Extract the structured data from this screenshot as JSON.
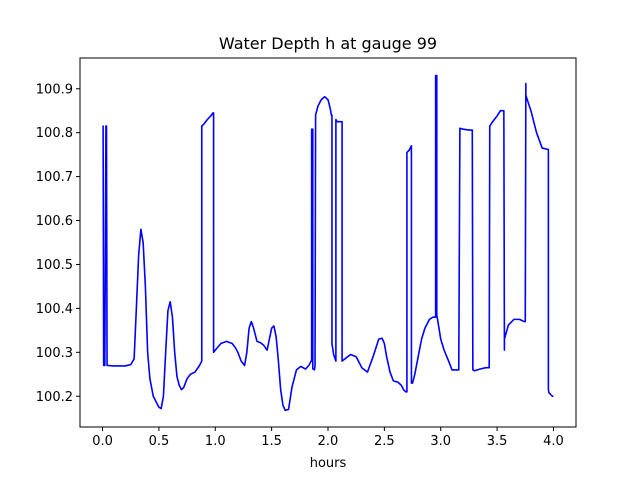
{
  "chart_data": {
    "type": "line",
    "title": "Water Depth h at gauge 99",
    "xlabel": "hours",
    "ylabel": "",
    "xlim": [
      -0.2,
      4.2
    ],
    "ylim": [
      100.13,
      100.97
    ],
    "x_ticks": [
      "0.0",
      "0.5",
      "1.0",
      "1.5",
      "2.0",
      "2.5",
      "3.0",
      "3.5",
      "4.0"
    ],
    "y_ticks": [
      "100.2",
      "100.3",
      "100.4",
      "100.5",
      "100.6",
      "100.7",
      "100.8",
      "100.9"
    ],
    "grid": false,
    "series": [
      {
        "color": "#0000ff",
        "x": [
          0.0,
          0.005,
          0.01,
          0.02,
          0.03,
          0.035,
          0.04,
          0.05,
          0.1,
          0.15,
          0.2,
          0.25,
          0.28,
          0.3,
          0.32,
          0.34,
          0.36,
          0.38,
          0.4,
          0.42,
          0.45,
          0.48,
          0.5,
          0.52,
          0.54,
          0.56,
          0.58,
          0.6,
          0.62,
          0.64,
          0.66,
          0.68,
          0.7,
          0.72,
          0.75,
          0.78,
          0.82,
          0.86,
          0.88,
          0.88,
          0.9,
          0.93,
          0.96,
          0.98,
          0.985,
          0.985,
          1.0,
          1.05,
          1.1,
          1.15,
          1.18,
          1.2,
          1.23,
          1.26,
          1.28,
          1.3,
          1.32,
          1.34,
          1.37,
          1.4,
          1.43,
          1.46,
          1.48,
          1.5,
          1.52,
          1.54,
          1.56,
          1.58,
          1.6,
          1.62,
          1.65,
          1.68,
          1.72,
          1.76,
          1.8,
          1.83,
          1.85,
          1.855,
          1.855,
          1.86,
          1.865,
          1.865,
          1.87,
          1.875,
          1.88,
          1.885,
          1.885,
          1.89,
          1.91,
          1.94,
          1.97,
          2.0,
          2.02,
          2.03,
          2.035,
          2.035,
          2.05,
          2.07,
          2.07,
          2.08,
          2.1,
          2.12,
          2.125,
          2.125,
          2.15,
          2.2,
          2.25,
          2.3,
          2.35,
          2.4,
          2.45,
          2.48,
          2.5,
          2.52,
          2.55,
          2.58,
          2.62,
          2.65,
          2.67,
          2.69,
          2.7,
          2.7,
          2.72,
          2.73,
          2.74,
          2.74,
          2.75,
          2.77,
          2.8,
          2.83,
          2.86,
          2.9,
          2.93,
          2.95,
          2.955,
          2.955,
          2.965,
          2.965,
          2.975,
          3.0,
          3.03,
          3.07,
          3.1,
          3.12,
          3.14,
          3.16,
          3.17,
          3.17,
          3.2,
          3.25,
          3.28,
          3.285,
          3.285,
          3.3,
          3.35,
          3.4,
          3.43,
          3.435,
          3.435,
          3.46,
          3.5,
          3.53,
          3.56,
          3.565,
          3.565,
          3.6,
          3.65,
          3.7,
          3.74,
          3.75,
          3.755,
          3.755,
          3.8,
          3.85,
          3.9,
          3.95,
          3.955,
          3.955,
          3.96,
          3.99,
          4.0
        ],
        "y": [
          100.815,
          100.815,
          100.27,
          100.27,
          100.815,
          100.815,
          100.27,
          100.27,
          100.269,
          100.269,
          100.269,
          100.272,
          100.285,
          100.4,
          100.52,
          100.58,
          100.55,
          100.45,
          100.3,
          100.24,
          100.2,
          100.185,
          100.175,
          100.172,
          100.2,
          100.3,
          100.395,
          100.415,
          100.38,
          100.3,
          100.245,
          100.225,
          100.215,
          100.22,
          100.24,
          100.25,
          100.255,
          100.27,
          100.28,
          100.815,
          100.82,
          100.83,
          100.838,
          100.845,
          100.845,
          100.3,
          100.305,
          100.32,
          100.325,
          100.32,
          100.31,
          100.3,
          100.28,
          100.27,
          100.3,
          100.355,
          100.37,
          100.355,
          100.325,
          100.322,
          100.316,
          100.305,
          100.33,
          100.355,
          100.36,
          100.335,
          100.28,
          100.215,
          100.18,
          100.168,
          100.17,
          100.22,
          100.26,
          100.268,
          100.262,
          100.27,
          100.28,
          100.28,
          100.808,
          100.808,
          100.808,
          100.262,
          100.262,
          100.262,
          100.26,
          100.27,
          100.285,
          100.84,
          100.86,
          100.875,
          100.882,
          100.875,
          100.855,
          100.84,
          100.84,
          100.32,
          100.295,
          100.28,
          100.83,
          100.825,
          100.825,
          100.825,
          100.825,
          100.28,
          100.285,
          100.295,
          100.29,
          100.265,
          100.255,
          100.29,
          100.33,
          100.332,
          100.32,
          100.29,
          100.255,
          100.235,
          100.232,
          100.225,
          100.215,
          100.21,
          100.21,
          100.755,
          100.76,
          100.765,
          100.77,
          100.23,
          100.23,
          100.25,
          100.29,
          100.33,
          100.355,
          100.375,
          100.38,
          100.38,
          100.38,
          100.93,
          100.93,
          100.385,
          100.37,
          100.33,
          100.305,
          100.28,
          100.26,
          100.26,
          100.26,
          100.26,
          100.81,
          100.81,
          100.808,
          100.806,
          100.806,
          100.26,
          100.26,
          100.258,
          100.262,
          100.265,
          100.265,
          100.812,
          100.815,
          100.825,
          100.838,
          100.85,
          100.85,
          100.305,
          100.33,
          100.362,
          100.375,
          100.375,
          100.37,
          100.37,
          100.912,
          100.885,
          100.85,
          100.8,
          100.765,
          100.762,
          100.762,
          100.215,
          100.208,
          100.2,
          100.2
        ]
      }
    ]
  }
}
